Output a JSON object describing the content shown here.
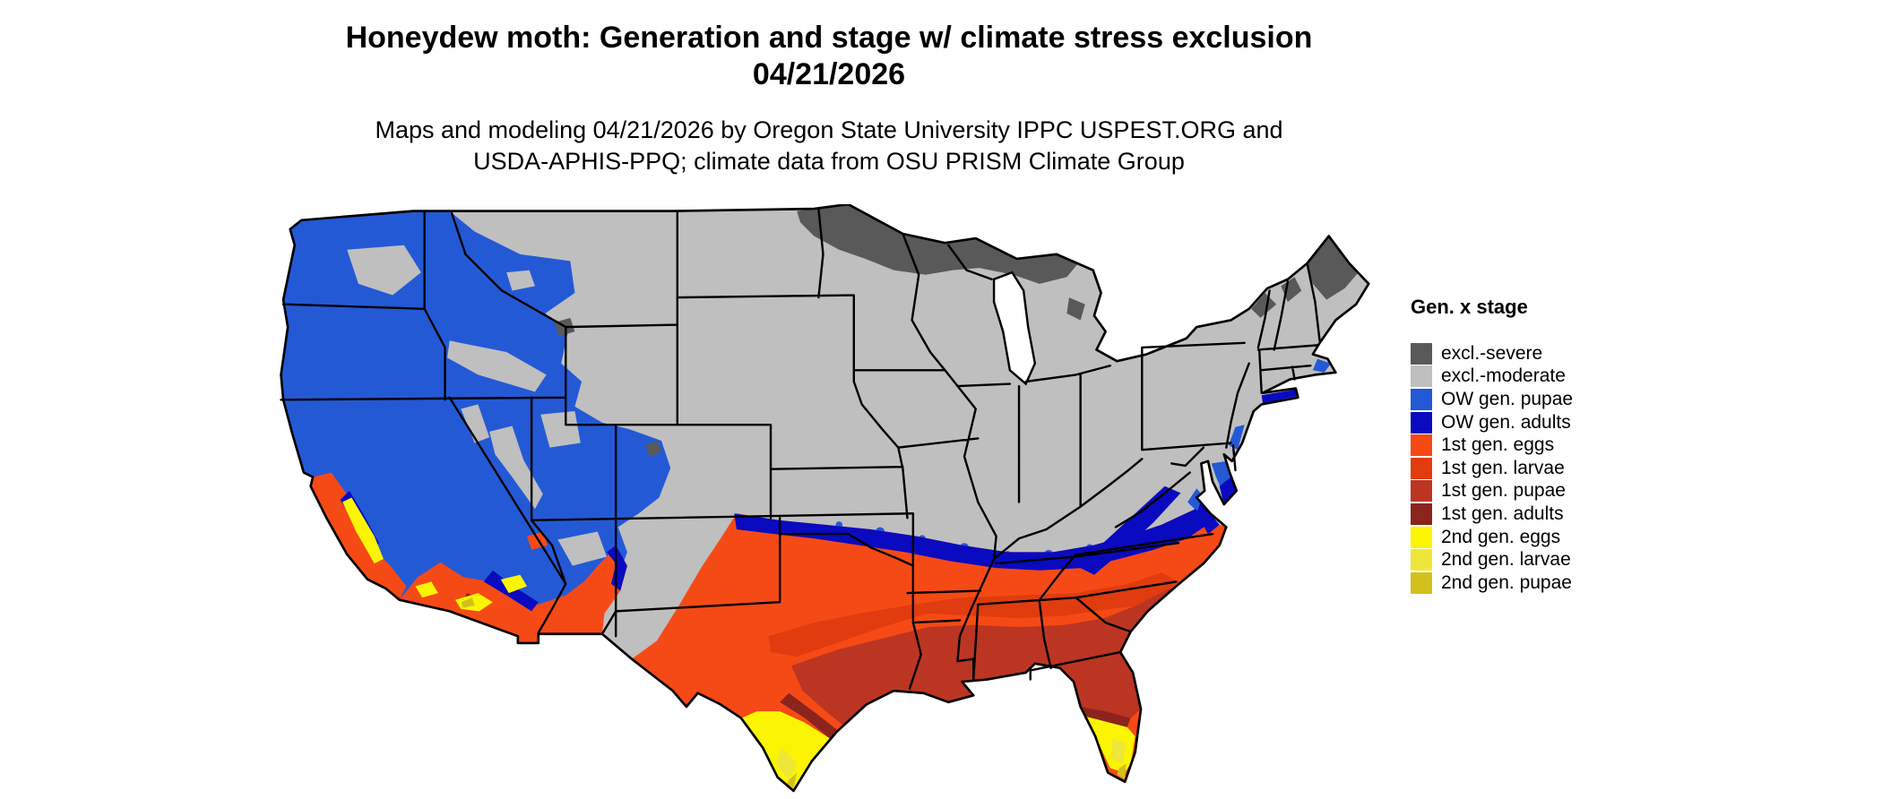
{
  "header": {
    "title_line1": "Honeydew moth: Generation and stage w/ climate stress exclusion",
    "title_line2": "04/21/2026",
    "subtitle_line1": "Maps and modeling 04/21/2026 by Oregon State University IPPC USPEST.ORG and",
    "subtitle_line2": "USDA-APHIS-PPQ; climate data from OSU PRISM Climate Group"
  },
  "legend": {
    "title": "Gen. x stage",
    "items": [
      {
        "label": "excl.-severe",
        "color": "#595959"
      },
      {
        "label": "excl.-moderate",
        "color": "#bfbfbf"
      },
      {
        "label": "OW gen. pupae",
        "color": "#2459d6"
      },
      {
        "label": "OW gen. adults",
        "color": "#0a0ac0"
      },
      {
        "label": "1st gen. eggs",
        "color": "#f64a16"
      },
      {
        "label": "1st gen. larvae",
        "color": "#e03c10"
      },
      {
        "label": "1st gen. pupae",
        "color": "#bc3522"
      },
      {
        "label": "1st gen. adults",
        "color": "#8c241e"
      },
      {
        "label": "2nd gen. eggs",
        "color": "#fbf504"
      },
      {
        "label": "2nd gen. larvae",
        "color": "#efe63a"
      },
      {
        "label": "2nd gen. pupae",
        "color": "#d2c11d"
      }
    ]
  },
  "map": {
    "region": "Contiguous United States"
  }
}
